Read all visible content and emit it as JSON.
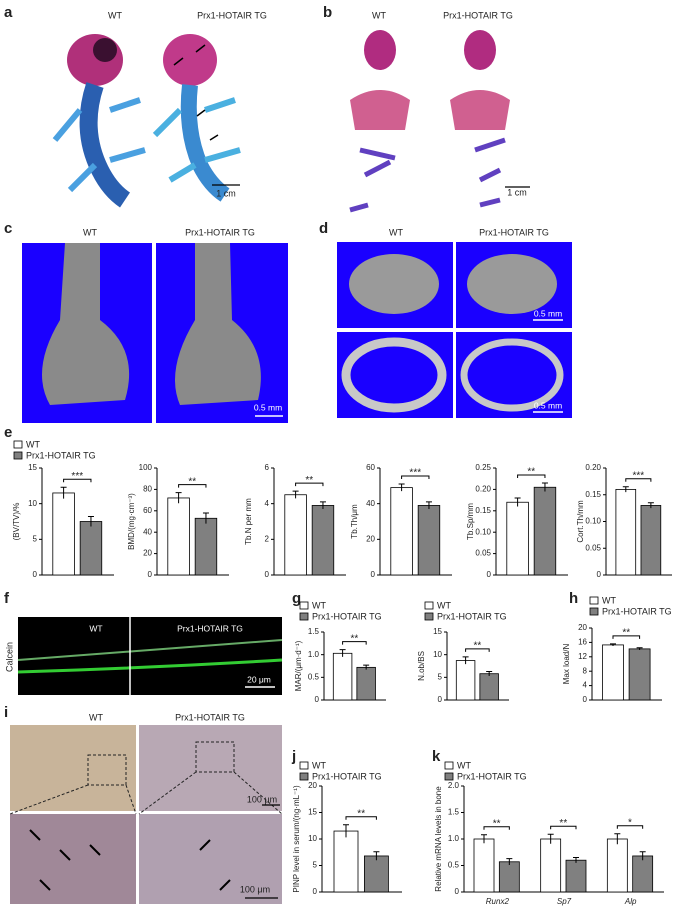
{
  "figure": {
    "a": {
      "letter": "a",
      "wt": "WT",
      "tg": "Prx1-HOTAIR TG",
      "scale": "1 cm"
    },
    "b": {
      "letter": "b",
      "wt": "WT",
      "tg": "Prx1-HOTAIR TG",
      "scale": "1 cm"
    },
    "c": {
      "letter": "c",
      "wt": "WT",
      "tg": "Prx1-HOTAIR TG",
      "scale": "0.5 mm"
    },
    "d": {
      "letter": "d",
      "wt": "WT",
      "tg": "Prx1-HOTAIR TG",
      "scales": [
        "0.5 mm",
        "0.5 mm"
      ]
    },
    "e": {
      "letter": "e"
    },
    "f": {
      "letter": "f",
      "wt": "WT",
      "tg": "Prx1-HOTAIR TG",
      "stain": "Calcein",
      "scale": "20 μm"
    },
    "g": {
      "letter": "g"
    },
    "h": {
      "letter": "h"
    },
    "i": {
      "letter": "i",
      "wt": "WT",
      "tg": "Prx1-HOTAIR TG",
      "scales": [
        "100 μm",
        "100 μm"
      ]
    },
    "j": {
      "letter": "j"
    },
    "k": {
      "letter": "k"
    }
  },
  "chart_data": [
    {
      "type": "bar",
      "y_label": "(BV/TV)/%",
      "legend": true,
      "ylim": [
        0,
        15
      ],
      "yticks": [
        0,
        5,
        10,
        15
      ],
      "significance": [
        "***"
      ],
      "series": [
        {
          "name": "WT",
          "color": "#ffffff",
          "values": [
            11.5
          ],
          "errors": [
            0.8
          ]
        },
        {
          "name": "Prx1-HOTAIR TG",
          "color": "#808080",
          "values": [
            7.5
          ],
          "errors": [
            0.7
          ]
        }
      ]
    },
    {
      "type": "bar",
      "y_label": "BMD/(mg·cm⁻³)",
      "legend": false,
      "ylim": [
        0,
        100
      ],
      "yticks": [
        0,
        20,
        40,
        60,
        80,
        100
      ],
      "significance": [
        "**"
      ],
      "series": [
        {
          "name": "WT",
          "color": "#ffffff",
          "values": [
            72
          ],
          "errors": [
            5
          ]
        },
        {
          "name": "Prx1-HOTAIR TG",
          "color": "#808080",
          "values": [
            53
          ],
          "errors": [
            5
          ]
        }
      ]
    },
    {
      "type": "bar",
      "y_label": "Tb.N per mm",
      "legend": false,
      "ylim": [
        0,
        6
      ],
      "yticks": [
        0,
        2,
        4,
        6
      ],
      "significance": [
        "**"
      ],
      "series": [
        {
          "name": "WT",
          "color": "#ffffff",
          "values": [
            4.5
          ],
          "errors": [
            0.2
          ]
        },
        {
          "name": "Prx1-HOTAIR TG",
          "color": "#808080",
          "values": [
            3.9
          ],
          "errors": [
            0.2
          ]
        }
      ]
    },
    {
      "type": "bar",
      "y_label": "Tb.Th/μm",
      "legend": false,
      "ylim": [
        0,
        60
      ],
      "yticks": [
        0,
        20,
        40,
        60
      ],
      "significance": [
        "***"
      ],
      "series": [
        {
          "name": "WT",
          "color": "#ffffff",
          "values": [
            49
          ],
          "errors": [
            2
          ]
        },
        {
          "name": "Prx1-HOTAIR TG",
          "color": "#808080",
          "values": [
            39
          ],
          "errors": [
            2
          ]
        }
      ]
    },
    {
      "type": "bar",
      "y_label": "Tb.Sp/mm",
      "legend": false,
      "ylim": [
        0,
        0.25
      ],
      "yticks": [
        0,
        0.05,
        {
          "value": 0.1,
          "label": "0.10"
        },
        0.15,
        {
          "value": 0.2,
          "label": "0.20"
        },
        0.25
      ],
      "significance": [
        "**"
      ],
      "series": [
        {
          "name": "WT",
          "color": "#ffffff",
          "values": [
            0.17
          ],
          "errors": [
            0.01
          ]
        },
        {
          "name": "Prx1-HOTAIR TG",
          "color": "#808080",
          "values": [
            0.205
          ],
          "errors": [
            0.01
          ]
        }
      ]
    },
    {
      "type": "bar",
      "y_label": "Cort.Th/mm",
      "legend": false,
      "ylim": [
        0,
        0.2
      ],
      "yticks": [
        0,
        0.05,
        {
          "value": 0.1,
          "label": "0.10"
        },
        0.15,
        {
          "value": 0.2,
          "label": "0.20"
        }
      ],
      "significance": [
        "***"
      ],
      "series": [
        {
          "name": "WT",
          "color": "#ffffff",
          "values": [
            0.16
          ],
          "errors": [
            0.005
          ]
        },
        {
          "name": "Prx1-HOTAIR TG",
          "color": "#808080",
          "values": [
            0.13
          ],
          "errors": [
            0.005
          ]
        }
      ]
    },
    {
      "type": "bar",
      "y_label": "MAR/(μm·d⁻¹)",
      "legend": true,
      "ylim": [
        0,
        1.5
      ],
      "yticks": [
        0,
        0.5,
        {
          "value": 1,
          "label": "1.0"
        },
        1.5
      ],
      "significance": [
        "**"
      ],
      "series": [
        {
          "name": "WT",
          "color": "#ffffff",
          "values": [
            1.03
          ],
          "errors": [
            0.08
          ]
        },
        {
          "name": "Prx1-HOTAIR TG",
          "color": "#808080",
          "values": [
            0.72
          ],
          "errors": [
            0.05
          ]
        }
      ]
    },
    {
      "type": "bar",
      "y_label": "N.ob/BS",
      "legend": true,
      "ylim": [
        0,
        15
      ],
      "yticks": [
        0,
        5,
        10,
        15
      ],
      "significance": [
        "**"
      ],
      "series": [
        {
          "name": "WT",
          "color": "#ffffff",
          "values": [
            8.7
          ],
          "errors": [
            0.8
          ]
        },
        {
          "name": "Prx1-HOTAIR TG",
          "color": "#808080",
          "values": [
            5.8
          ],
          "errors": [
            0.5
          ]
        }
      ]
    },
    {
      "type": "bar",
      "y_label": "Max load/N",
      "legend": true,
      "ylim": [
        0,
        20
      ],
      "yticks": [
        0,
        4,
        8,
        12,
        16,
        20
      ],
      "significance": [
        "**"
      ],
      "series": [
        {
          "name": "WT",
          "color": "#ffffff",
          "values": [
            15.3
          ],
          "errors": [
            0.3
          ]
        },
        {
          "name": "Prx1-HOTAIR TG",
          "color": "#808080",
          "values": [
            14.2
          ],
          "errors": [
            0.3
          ]
        }
      ]
    },
    {
      "type": "bar",
      "y_label": "PINP level in serum/(ng·mL⁻¹)",
      "legend": true,
      "ylim": [
        0,
        20
      ],
      "yticks": [
        0,
        5,
        10,
        15,
        20
      ],
      "significance": [
        "**"
      ],
      "series": [
        {
          "name": "WT",
          "color": "#ffffff",
          "values": [
            11.5
          ],
          "errors": [
            1.2
          ]
        },
        {
          "name": "Prx1-HOTAIR TG",
          "color": "#808080",
          "values": [
            6.8
          ],
          "errors": [
            0.8
          ]
        }
      ]
    },
    {
      "type": "bar",
      "y_label": "Relative mRNA levels in bone",
      "legend": true,
      "categories": [
        "Runx2",
        "Sp7",
        "Alp"
      ],
      "ylim": [
        0,
        2
      ],
      "yticks": [
        0,
        0.5,
        {
          "value": 1,
          "label": "1.0"
        },
        1.5,
        {
          "value": 2,
          "label": "2.0"
        }
      ],
      "significance": [
        "**",
        "**",
        "*"
      ],
      "series": [
        {
          "name": "WT",
          "color": "#ffffff",
          "values": [
            1.0,
            1.0,
            1.0
          ],
          "errors": [
            0.08,
            0.09,
            0.1
          ]
        },
        {
          "name": "Prx1-HOTAIR TG",
          "color": "#808080",
          "values": [
            0.57,
            0.6,
            0.68
          ],
          "errors": [
            0.06,
            0.05,
            0.08
          ]
        }
      ]
    }
  ]
}
